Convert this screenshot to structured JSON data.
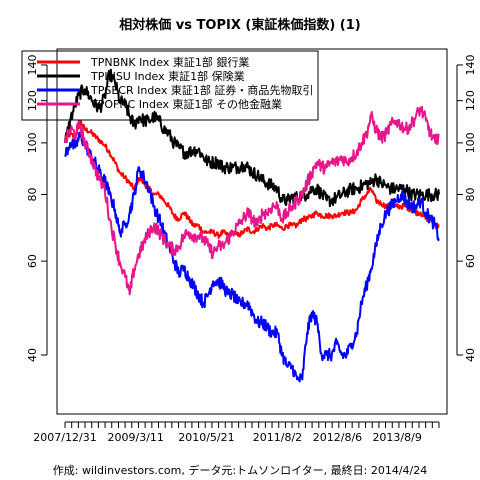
{
  "chart_data": {
    "type": "line",
    "title": "相対株価 vs TOPIX (東証株価指数) (1)",
    "caption": "作成: wildinvestors.com, データ元:トムソンロイター, 最終日: 2014/4/24",
    "y_scale": "log",
    "ylim": [
      31,
      150
    ],
    "y_ticks": [
      40,
      60,
      80,
      100,
      120,
      140
    ],
    "x_tick_labels": [
      "2007/12/31",
      "2009/3/11",
      "2010/5/21",
      "2011/8/2",
      "2012/8/6",
      "2013/8/9"
    ],
    "x_tick_dates": [
      "2007-12-31",
      "2009-03-11",
      "2010-05-21",
      "2011-08-02",
      "2012-08-06",
      "2013-08-09"
    ],
    "x_range": [
      "2007-12-31",
      "2014-04-24"
    ],
    "legend_position": "top-left",
    "grid": false,
    "series": [
      {
        "name": "TPNBNK Index 東証1部 銀行業",
        "color": "#ff0000",
        "dates": [
          "2007-12-31",
          "2008-02-01",
          "2008-03-03",
          "2008-04-01",
          "2008-05-01",
          "2008-06-02",
          "2008-07-01",
          "2008-08-01",
          "2008-09-01",
          "2008-10-01",
          "2008-11-03",
          "2008-12-01",
          "2009-01-05",
          "2009-02-02",
          "2009-03-02",
          "2009-04-01",
          "2009-05-01",
          "2009-06-01",
          "2009-07-01",
          "2009-08-03",
          "2009-09-01",
          "2009-10-01",
          "2009-11-02",
          "2009-12-01",
          "2010-01-04",
          "2010-02-01",
          "2010-03-01",
          "2010-04-01",
          "2010-05-03",
          "2010-06-01",
          "2010-07-01",
          "2010-08-02",
          "2010-09-01",
          "2010-10-01",
          "2010-11-01",
          "2010-12-01",
          "2011-01-03",
          "2011-02-01",
          "2011-03-01",
          "2011-04-01",
          "2011-05-02",
          "2011-06-01",
          "2011-07-01",
          "2011-08-01",
          "2011-09-01",
          "2011-10-03",
          "2011-11-01",
          "2011-12-01",
          "2012-01-02",
          "2012-02-01",
          "2012-03-01",
          "2012-04-02",
          "2012-05-01",
          "2012-06-01",
          "2012-07-02",
          "2012-08-01",
          "2012-09-03",
          "2012-10-01",
          "2012-11-01",
          "2012-12-03",
          "2013-01-01",
          "2013-02-01",
          "2013-03-01",
          "2013-04-01",
          "2013-05-01",
          "2013-06-03",
          "2013-07-01",
          "2013-08-01",
          "2013-09-02",
          "2013-10-01",
          "2013-11-01",
          "2013-12-02",
          "2014-01-01",
          "2014-02-03",
          "2014-03-03",
          "2014-04-01",
          "2014-04-24"
        ],
        "values": [
          100,
          104,
          102,
          110,
          106,
          105,
          103,
          101,
          99,
          96,
          92,
          88,
          86,
          84,
          82,
          86,
          84,
          82,
          80,
          80,
          78,
          76,
          73,
          72,
          74,
          72,
          70,
          70,
          68,
          68,
          68,
          67,
          68,
          67,
          68,
          67,
          68,
          69,
          68,
          69,
          70,
          69,
          70,
          70,
          69,
          70,
          70,
          70,
          72,
          72,
          73,
          74,
          73,
          73,
          73,
          73,
          74,
          74,
          74,
          75,
          78,
          80,
          82,
          78,
          77,
          76,
          76,
          76,
          76,
          76,
          75,
          74,
          74,
          72,
          72,
          70,
          70
        ]
      },
      {
        "name": "TPINSU Index 東証1部 保険業",
        "color": "#000000",
        "dates": [
          "2007-12-31",
          "2008-02-01",
          "2008-03-03",
          "2008-04-01",
          "2008-05-01",
          "2008-06-02",
          "2008-07-01",
          "2008-08-01",
          "2008-09-01",
          "2008-10-01",
          "2008-11-03",
          "2008-12-01",
          "2009-01-05",
          "2009-02-02",
          "2009-03-02",
          "2009-04-01",
          "2009-05-01",
          "2009-06-01",
          "2009-07-01",
          "2009-08-03",
          "2009-09-01",
          "2009-10-01",
          "2009-11-02",
          "2009-12-01",
          "2010-01-04",
          "2010-02-01",
          "2010-03-01",
          "2010-04-01",
          "2010-05-03",
          "2010-06-01",
          "2010-07-01",
          "2010-08-02",
          "2010-09-01",
          "2010-10-01",
          "2010-11-01",
          "2010-12-01",
          "2011-01-03",
          "2011-02-01",
          "2011-03-01",
          "2011-04-01",
          "2011-05-02",
          "2011-06-01",
          "2011-07-01",
          "2011-08-01",
          "2011-09-01",
          "2011-10-03",
          "2011-11-01",
          "2011-12-01",
          "2012-01-02",
          "2012-02-01",
          "2012-03-01",
          "2012-04-02",
          "2012-05-01",
          "2012-06-01",
          "2012-07-02",
          "2012-08-01",
          "2012-09-03",
          "2012-10-01",
          "2012-11-01",
          "2012-12-03",
          "2013-01-01",
          "2013-02-01",
          "2013-03-01",
          "2013-04-01",
          "2013-05-01",
          "2013-06-03",
          "2013-07-01",
          "2013-08-01",
          "2013-09-02",
          "2013-10-01",
          "2013-11-01",
          "2013-12-02",
          "2014-01-01",
          "2014-02-03",
          "2014-03-03",
          "2014-04-01",
          "2014-04-24"
        ],
        "values": [
          100,
          110,
          118,
          124,
          126,
          122,
          118,
          116,
          122,
          135,
          130,
          120,
          118,
          112,
          108,
          112,
          110,
          110,
          112,
          110,
          106,
          104,
          100,
          98,
          96,
          96,
          97,
          97,
          94,
          92,
          92,
          92,
          90,
          90,
          90,
          90,
          91,
          90,
          88,
          87,
          85,
          84,
          83,
          82,
          78,
          78,
          79,
          79,
          80,
          80,
          82,
          82,
          80,
          78,
          78,
          79,
          80,
          81,
          82,
          82,
          83,
          84,
          84,
          86,
          84,
          83,
          82,
          82,
          82,
          82,
          80,
          80,
          80,
          80,
          80,
          80,
          80
        ]
      },
      {
        "name": "TPSECR Index 東証1部 証券・商品先物取引",
        "color": "#0000ff",
        "dates": [
          "2007-12-31",
          "2008-02-01",
          "2008-03-03",
          "2008-04-01",
          "2008-05-01",
          "2008-06-02",
          "2008-07-01",
          "2008-08-01",
          "2008-09-01",
          "2008-10-01",
          "2008-11-03",
          "2008-12-01",
          "2009-01-05",
          "2009-02-02",
          "2009-03-02",
          "2009-04-01",
          "2009-05-01",
          "2009-06-01",
          "2009-07-01",
          "2009-08-03",
          "2009-09-01",
          "2009-10-01",
          "2009-11-02",
          "2009-12-01",
          "2010-01-04",
          "2010-02-01",
          "2010-03-01",
          "2010-04-01",
          "2010-05-03",
          "2010-06-01",
          "2010-07-01",
          "2010-08-02",
          "2010-09-01",
          "2010-10-01",
          "2010-11-01",
          "2010-12-01",
          "2011-01-03",
          "2011-02-01",
          "2011-03-01",
          "2011-04-01",
          "2011-05-02",
          "2011-06-01",
          "2011-07-01",
          "2011-08-01",
          "2011-09-01",
          "2011-10-03",
          "2011-11-01",
          "2011-12-01",
          "2012-01-02",
          "2012-02-01",
          "2012-03-01",
          "2012-04-02",
          "2012-05-01",
          "2012-06-01",
          "2012-07-02",
          "2012-08-01",
          "2012-09-03",
          "2012-10-01",
          "2012-11-01",
          "2012-12-03",
          "2013-01-01",
          "2013-02-01",
          "2013-03-01",
          "2013-04-01",
          "2013-05-01",
          "2013-06-03",
          "2013-07-01",
          "2013-08-01",
          "2013-09-02",
          "2013-10-01",
          "2013-11-01",
          "2013-12-02",
          "2014-01-01",
          "2014-02-03",
          "2014-03-03",
          "2014-04-01",
          "2014-04-24"
        ],
        "values": [
          95,
          100,
          98,
          103,
          100,
          95,
          92,
          88,
          85,
          80,
          75,
          68,
          70,
          74,
          80,
          90,
          86,
          82,
          76,
          72,
          68,
          64,
          60,
          57,
          58,
          56,
          54,
          52,
          50,
          52,
          55,
          55,
          54,
          52,
          52,
          50,
          50,
          50,
          48,
          46,
          46,
          45,
          44,
          44,
          40,
          38,
          38,
          36,
          36,
          44,
          48,
          46,
          40,
          40,
          40,
          42,
          40,
          40,
          42,
          44,
          50,
          54,
          58,
          64,
          70,
          74,
          76,
          78,
          80,
          78,
          76,
          76,
          78,
          74,
          72,
          70,
          66
        ]
      },
      {
        "name": "TPOFNC Index 東証1部 その他金融業",
        "color": "#e6168c",
        "dates": [
          "2007-12-31",
          "2008-02-01",
          "2008-03-03",
          "2008-04-01",
          "2008-05-01",
          "2008-06-02",
          "2008-07-01",
          "2008-08-01",
          "2008-09-01",
          "2008-10-01",
          "2008-11-03",
          "2008-12-01",
          "2009-01-05",
          "2009-02-02",
          "2009-03-02",
          "2009-04-01",
          "2009-05-01",
          "2009-06-01",
          "2009-07-01",
          "2009-08-03",
          "2009-09-01",
          "2009-10-01",
          "2009-11-02",
          "2009-12-01",
          "2010-01-04",
          "2010-02-01",
          "2010-03-01",
          "2010-04-01",
          "2010-05-03",
          "2010-06-01",
          "2010-07-01",
          "2010-08-02",
          "2010-09-01",
          "2010-10-01",
          "2010-11-01",
          "2010-12-01",
          "2011-01-03",
          "2011-02-01",
          "2011-03-01",
          "2011-04-01",
          "2011-05-02",
          "2011-06-01",
          "2011-07-01",
          "2011-08-01",
          "2011-09-01",
          "2011-10-03",
          "2011-11-01",
          "2011-12-01",
          "2012-01-02",
          "2012-02-01",
          "2012-03-01",
          "2012-04-02",
          "2012-05-01",
          "2012-06-01",
          "2012-07-02",
          "2012-08-01",
          "2012-09-03",
          "2012-10-01",
          "2012-11-01",
          "2012-12-03",
          "2013-01-01",
          "2013-02-01",
          "2013-03-01",
          "2013-04-01",
          "2013-05-01",
          "2013-06-03",
          "2013-07-01",
          "2013-08-01",
          "2013-09-02",
          "2013-10-01",
          "2013-11-01",
          "2013-12-02",
          "2014-01-01",
          "2014-02-03",
          "2014-03-03",
          "2014-04-01",
          "2014-04-24"
        ],
        "values": [
          100,
          106,
          104,
          108,
          100,
          95,
          90,
          85,
          82,
          72,
          65,
          60,
          56,
          52,
          58,
          62,
          65,
          68,
          70,
          68,
          66,
          64,
          63,
          64,
          67,
          68,
          67,
          67,
          66,
          64,
          62,
          64,
          64,
          66,
          68,
          70,
          72,
          74,
          72,
          70,
          74,
          74,
          76,
          76,
          72,
          74,
          76,
          78,
          80,
          84,
          88,
          92,
          90,
          90,
          92,
          92,
          94,
          92,
          94,
          96,
          100,
          104,
          112,
          106,
          102,
          104,
          108,
          110,
          108,
          106,
          108,
          112,
          116,
          110,
          104,
          100,
          104
        ]
      }
    ]
  }
}
